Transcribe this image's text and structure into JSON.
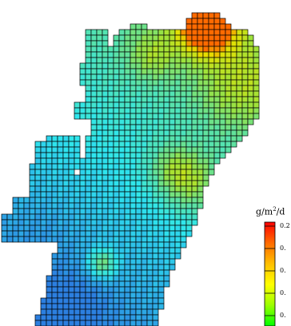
{
  "legend": {
    "unit_prefix": "g/m",
    "unit_exp": "2",
    "unit_suffix": "/d",
    "ticks": [
      "0.2",
      "0.",
      "0.",
      "0.",
      "0."
    ],
    "colors": [
      "#ff0000",
      "#ff6a00",
      "#ffbf00",
      "#ffff00",
      "#9bff00",
      "#00ff00"
    ]
  },
  "map_colors": {
    "grid_line": "#000000",
    "low": "#2c7fe0",
    "mid_low": "#2ee6ee",
    "mid": "#5fe2a0",
    "mid_high": "#9fe23a",
    "high": "#e6e000",
    "peak": "#ff6a00"
  }
}
